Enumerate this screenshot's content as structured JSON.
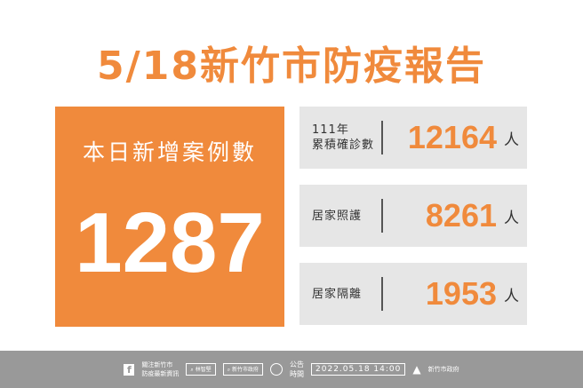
{
  "title": "5/18新竹市防疫報告",
  "today": {
    "label": "本日新增案例數",
    "value": "1287"
  },
  "stats": [
    {
      "label_line1": "111年",
      "label_line2": "累積確診數",
      "value": "12164",
      "unit": "人"
    },
    {
      "label_line1": "",
      "label_line2": "居家照護",
      "value": "8261",
      "unit": "人"
    },
    {
      "label_line1": "",
      "label_line2": "居家隔離",
      "value": "1953",
      "unit": "人"
    }
  ],
  "footer": {
    "follow_line1": "關注新竹市",
    "follow_line2": "防疫最新資訊",
    "search1": "林智堅",
    "search2": "新竹市政府",
    "announce_line1": "公告",
    "announce_line2": "時間",
    "datetime": "2022.05.18 14:00",
    "org": "新竹市政府"
  },
  "colors": {
    "accent": "#f08a3c",
    "panel": "#e6e6e6",
    "footer": "#999999"
  }
}
